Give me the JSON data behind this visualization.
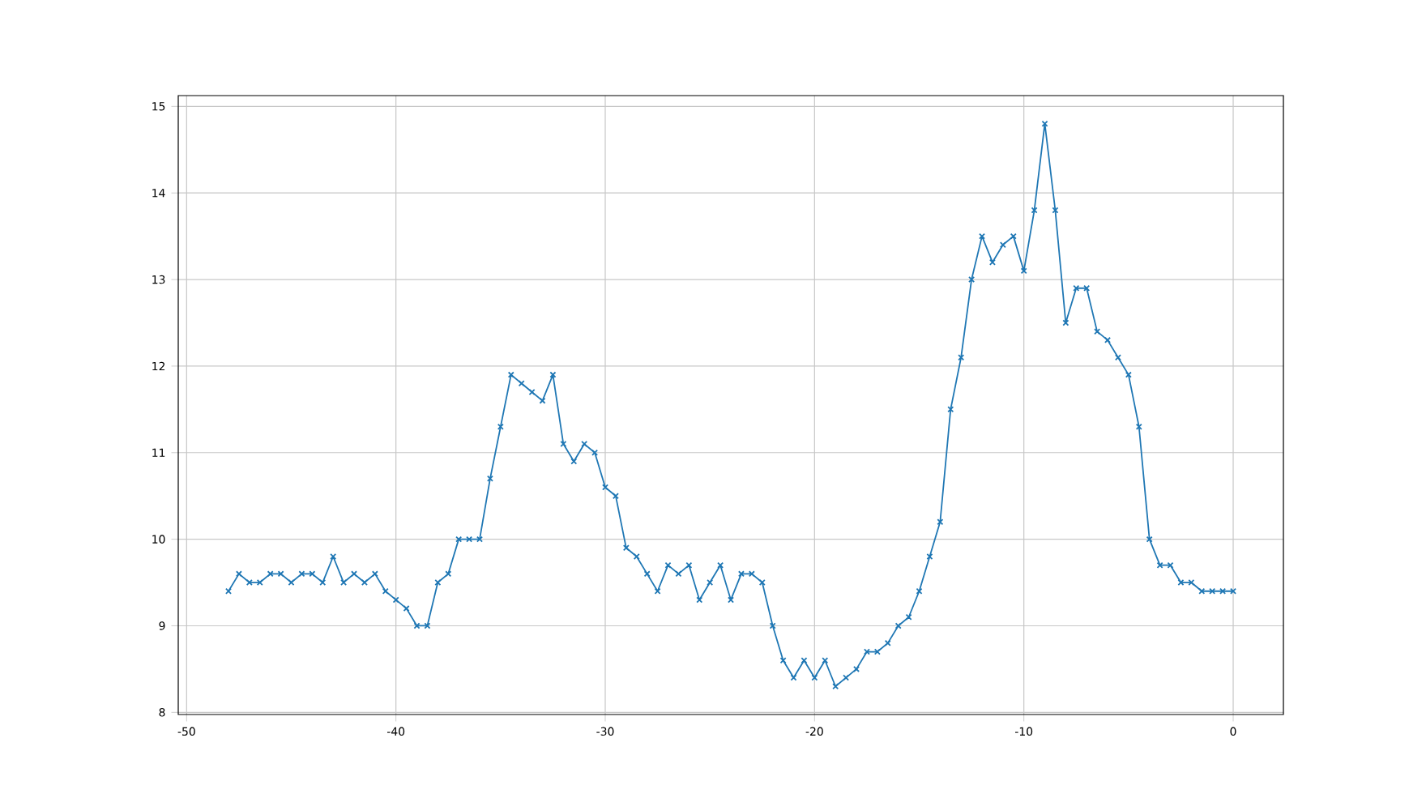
{
  "chart_data": {
    "type": "line",
    "marker": "cross",
    "grid": true,
    "x": [
      -48,
      -47.5,
      -47,
      -46.5,
      -46,
      -45.5,
      -45,
      -44.5,
      -44,
      -43.5,
      -43,
      -42.5,
      -42,
      -41.5,
      -41,
      -40.5,
      -40,
      -39.5,
      -39,
      -38.5,
      -38,
      -37.5,
      -37,
      -36.5,
      -36,
      -35.5,
      -35,
      -34.5,
      -34,
      -33.5,
      -33,
      -32.5,
      -32,
      -31.5,
      -31,
      -30.5,
      -30,
      -29.5,
      -29,
      -28.5,
      -28,
      -27.5,
      -27,
      -26.5,
      -26,
      -25.5,
      -25,
      -24.5,
      -24,
      -23.5,
      -23,
      -22.5,
      -22,
      -21.5,
      -21,
      -20.5,
      -20,
      -19.5,
      -19,
      -18.5,
      -18,
      -17.5,
      -17,
      -16.5,
      -16,
      -15.5,
      -15,
      -14.5,
      -14,
      -13.5,
      -13,
      -12.5,
      -12,
      -11.5,
      -11,
      -10.5,
      -10,
      -9.5,
      -9,
      -8.5,
      -8,
      -7.5,
      -7,
      -6.5,
      -6,
      -5.5,
      -5,
      -4.5,
      -4,
      -3.5,
      -3,
      -2.5,
      -2,
      -1.5,
      -1,
      -0.5,
      0
    ],
    "series": [
      {
        "color": "#1f77b4",
        "values": [
          9.4,
          9.6,
          9.5,
          9.5,
          9.6,
          9.6,
          9.5,
          9.6,
          9.6,
          9.5,
          9.8,
          9.5,
          9.6,
          9.5,
          9.6,
          9.4,
          9.3,
          9.2,
          9.0,
          9.0,
          9.5,
          9.6,
          10.0,
          10.0,
          10.0,
          10.7,
          11.3,
          11.9,
          11.8,
          11.7,
          11.6,
          11.9,
          11.1,
          10.9,
          11.1,
          11.0,
          10.6,
          10.5,
          9.9,
          9.8,
          9.6,
          9.4,
          9.7,
          9.6,
          9.7,
          9.3,
          9.5,
          9.7,
          9.3,
          9.6,
          9.6,
          9.5,
          9.0,
          8.6,
          8.4,
          8.6,
          8.4,
          8.6,
          8.3,
          8.4,
          8.5,
          8.7,
          8.7,
          8.8,
          9.0,
          9.1,
          9.4,
          9.8,
          10.2,
          11.5,
          12.1,
          13.0,
          13.5,
          13.2,
          13.4,
          13.5,
          13.1,
          13.8,
          14.8,
          13.8,
          12.5,
          12.9,
          12.9,
          12.4,
          12.3,
          12.1,
          11.9,
          11.3,
          10.0,
          9.7,
          9.7,
          9.5,
          9.5,
          9.4,
          9.4,
          9.4,
          9.4
        ]
      }
    ],
    "xlim": [
      -50.4,
      2.4
    ],
    "ylim": [
      7.975,
      15.125
    ],
    "xticks": [
      -50,
      -40,
      -30,
      -20,
      -10,
      0
    ],
    "yticks": [
      8,
      9,
      10,
      11,
      12,
      13,
      14,
      15
    ]
  }
}
